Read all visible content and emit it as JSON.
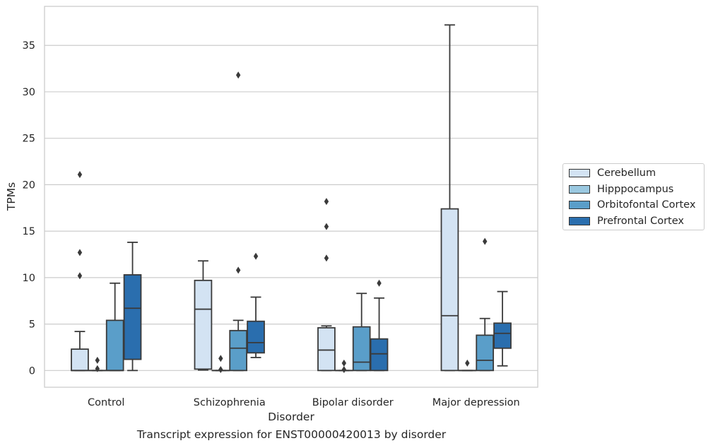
{
  "chart_data": {
    "type": "box",
    "title": "",
    "caption": "Transcript expression for ENST00000420013 by disorder",
    "xlabel": "Disorder",
    "ylabel": "TPMs",
    "ylim": [
      -1.8,
      39.2
    ],
    "yticks": [
      0,
      5,
      10,
      15,
      20,
      25,
      30,
      35
    ],
    "ytick_labels": [
      "0",
      "5",
      "10",
      "15",
      "20",
      "25",
      "30",
      "35"
    ],
    "grid": "horizontal",
    "legend_position": "right",
    "categories": [
      "Control",
      "Schizophrenia",
      "Bipolar disorder",
      "Major depression"
    ],
    "series": [
      {
        "name": "Cerebellum",
        "color": "#d3e3f3",
        "boxes": [
          {
            "whisker_low": 0,
            "q1": 0,
            "median": 0,
            "q3": 2.3,
            "whisker_high": 4.2,
            "outliers": [
              10.2,
              12.7,
              21.1
            ]
          },
          {
            "whisker_low": 0.05,
            "q1": 0.15,
            "median": 6.6,
            "q3": 9.7,
            "whisker_high": 11.8,
            "outliers": []
          },
          {
            "whisker_low": 0,
            "q1": 0,
            "median": 2.2,
            "q3": 4.6,
            "whisker_high": 4.8,
            "outliers": [
              12.1,
              15.5,
              18.2
            ]
          },
          {
            "whisker_low": 0,
            "q1": 0,
            "median": 5.9,
            "q3": 17.4,
            "whisker_high": 37.2,
            "outliers": []
          }
        ]
      },
      {
        "name": "Hipppocampus",
        "color": "#9ac8e0",
        "boxes": [
          {
            "whisker_low": 0,
            "q1": 0,
            "median": 0,
            "q3": 0,
            "whisker_high": 0,
            "outliers": [
              0.2,
              1.1
            ]
          },
          {
            "whisker_low": 0,
            "q1": 0,
            "median": 0,
            "q3": 0,
            "whisker_high": 0,
            "outliers": [
              0.1,
              1.3
            ]
          },
          {
            "whisker_low": 0,
            "q1": 0,
            "median": 0,
            "q3": 0,
            "whisker_high": 0,
            "outliers": [
              0.1,
              0.8
            ]
          },
          {
            "whisker_low": 0,
            "q1": 0,
            "median": 0,
            "q3": 0,
            "whisker_high": 0,
            "outliers": [
              0.8
            ]
          }
        ]
      },
      {
        "name": "Orbitofontal Cortex",
        "color": "#5a9ec9",
        "boxes": [
          {
            "whisker_low": 0,
            "q1": 0,
            "median": 0,
            "q3": 5.4,
            "whisker_high": 9.4,
            "outliers": []
          },
          {
            "whisker_low": 0,
            "q1": 0,
            "median": 2.4,
            "q3": 4.3,
            "whisker_high": 5.4,
            "outliers": [
              10.8,
              31.8
            ]
          },
          {
            "whisker_low": 0,
            "q1": 0,
            "median": 0.9,
            "q3": 4.7,
            "whisker_high": 8.3,
            "outliers": []
          },
          {
            "whisker_low": 0,
            "q1": 0,
            "median": 1.1,
            "q3": 3.8,
            "whisker_high": 5.6,
            "outliers": [
              13.9
            ]
          }
        ]
      },
      {
        "name": "Prefrontal Cortex",
        "color": "#2a6eae",
        "boxes": [
          {
            "whisker_low": 0,
            "q1": 1.2,
            "median": 6.7,
            "q3": 10.3,
            "whisker_high": 13.8,
            "outliers": []
          },
          {
            "whisker_low": 1.4,
            "q1": 1.9,
            "median": 3.0,
            "q3": 5.3,
            "whisker_high": 7.9,
            "outliers": [
              12.3
            ]
          },
          {
            "whisker_low": 0,
            "q1": 0,
            "median": 1.8,
            "q3": 3.4,
            "whisker_high": 7.8,
            "outliers": [
              9.4
            ]
          },
          {
            "whisker_low": 0.5,
            "q1": 2.4,
            "median": 4.0,
            "q3": 5.1,
            "whisker_high": 8.5,
            "outliers": []
          }
        ]
      }
    ]
  }
}
